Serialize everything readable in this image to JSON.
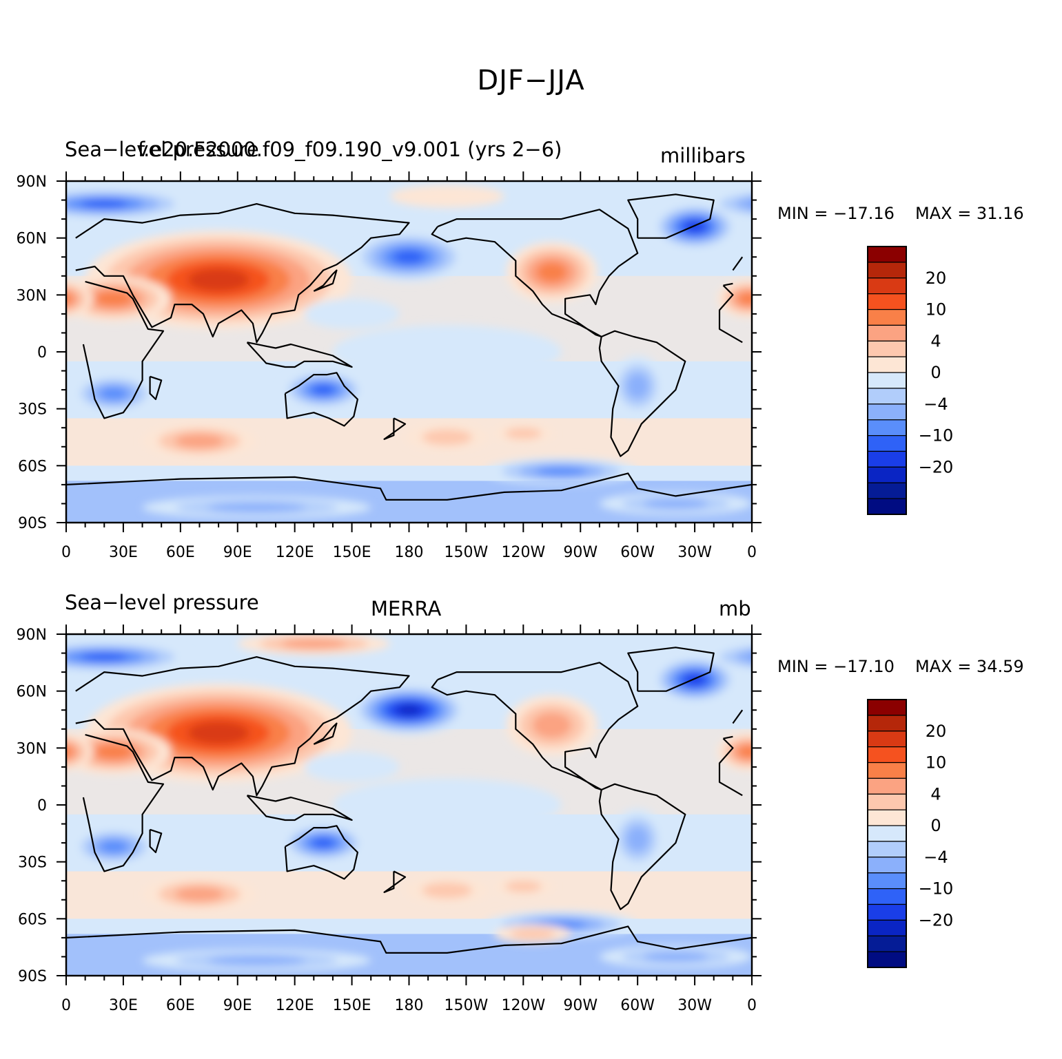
{
  "figure": {
    "title": "DJF−JJA"
  },
  "axes": {
    "lat_ticks": [
      "90N",
      "60N",
      "30N",
      "0",
      "30S",
      "60S",
      "90S"
    ],
    "lon_ticks": [
      "0",
      "30E",
      "60E",
      "90E",
      "120E",
      "150E",
      "180",
      "150W",
      "120W",
      "90W",
      "60W",
      "30W",
      "0"
    ]
  },
  "colorbar": {
    "levels": [
      "20",
      "10",
      "4",
      "0",
      "−4",
      "−10",
      "−20"
    ],
    "colors": [
      "#8b0000",
      "#b5270a",
      "#d93a14",
      "#f5521f",
      "#f98048",
      "#fba382",
      "#fdc8ae",
      "#fde6d5",
      "#d6e8fb",
      "#b1cdfb",
      "#8bb0fb",
      "#5a8efb",
      "#2f62f7",
      "#1a3ee8",
      "#0a25c4",
      "#051c96",
      "#000c82"
    ]
  },
  "panels": [
    {
      "left_title": "Sea−level pressure",
      "center_title": "f.e20.F2000.f09_f09.190_v9.001 (yrs 2−6)",
      "right_title": "millibars",
      "min_label": "MIN = −17.16",
      "max_label": "MAX =   31.16"
    },
    {
      "left_title": "Sea−level pressure",
      "center_title": "MERRA",
      "right_title": "mb",
      "min_label": "MIN = −17.10",
      "max_label": "MAX =   34.59"
    }
  ]
}
